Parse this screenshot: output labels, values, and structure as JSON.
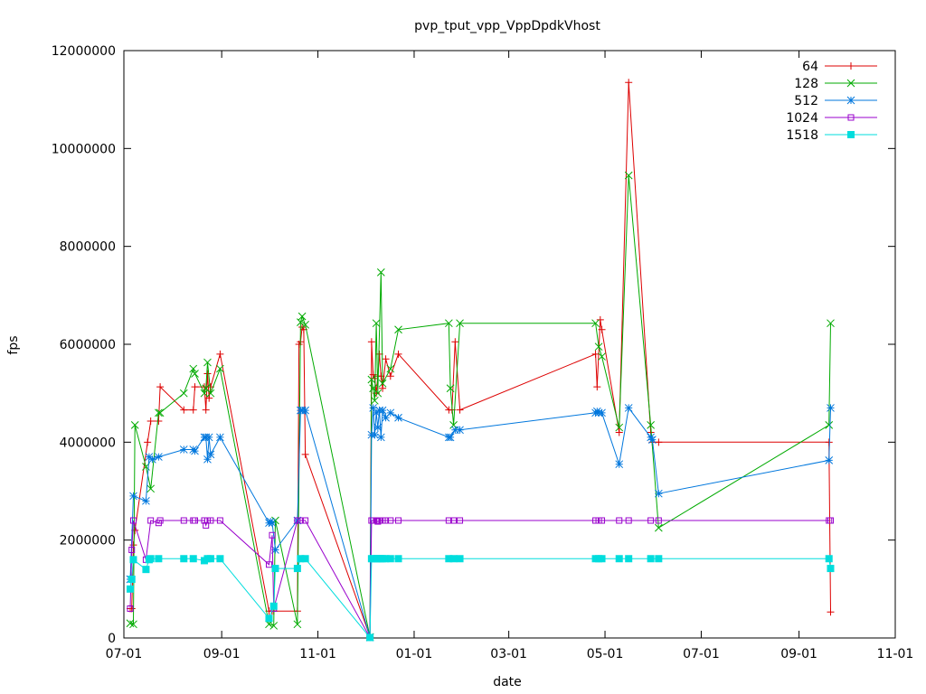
{
  "chart_data": {
    "type": "line",
    "title": "pvp_tput_vpp_VppDpdkVhost",
    "xlabel": "date",
    "ylabel": "fps",
    "x_domain": [
      "2015-07-01",
      "2016-11-01"
    ],
    "ylim": [
      0,
      12000000
    ],
    "xticks": [
      {
        "date": "2015-07-01",
        "label": "07-01"
      },
      {
        "date": "2015-09-01",
        "label": "09-01"
      },
      {
        "date": "2015-11-01",
        "label": "11-01"
      },
      {
        "date": "2016-01-01",
        "label": "01-01"
      },
      {
        "date": "2016-03-01",
        "label": "03-01"
      },
      {
        "date": "2016-05-01",
        "label": "05-01"
      },
      {
        "date": "2016-07-01",
        "label": "07-01"
      },
      {
        "date": "2016-09-01",
        "label": "09-01"
      },
      {
        "date": "2016-11-01",
        "label": "11-01"
      }
    ],
    "yticks": [
      {
        "value": 0,
        "label": "0"
      },
      {
        "value": 2000000,
        "label": "2000000"
      },
      {
        "value": 4000000,
        "label": "4000000"
      },
      {
        "value": 6000000,
        "label": "6000000"
      },
      {
        "value": 8000000,
        "label": "8000000"
      },
      {
        "value": 10000000,
        "label": "10000000"
      },
      {
        "value": 12000000,
        "label": "12000000"
      }
    ],
    "grid": false,
    "legend_position": "top-right",
    "series": [
      {
        "name": "64",
        "color": "#dd0000",
        "marker": "plus",
        "points": [
          [
            "2015-07-05",
            600000
          ],
          [
            "2015-07-06",
            600000
          ],
          [
            "2015-07-07",
            1900000
          ],
          [
            "2015-07-08",
            2200000
          ],
          [
            "2015-07-16",
            4000000
          ],
          [
            "2015-07-18",
            4430000
          ],
          [
            "2015-07-23",
            4430000
          ],
          [
            "2015-07-24",
            5130000
          ],
          [
            "2015-08-08",
            4660000
          ],
          [
            "2015-08-14",
            4660000
          ],
          [
            "2015-08-15",
            5130000
          ],
          [
            "2015-08-21",
            5130000
          ],
          [
            "2015-08-22",
            4660000
          ],
          [
            "2015-08-23",
            5400000
          ],
          [
            "2015-08-24",
            4900000
          ],
          [
            "2015-08-25",
            5130000
          ],
          [
            "2015-08-31",
            5800000
          ],
          [
            "2015-10-01",
            550000
          ],
          [
            "2015-10-03",
            550000
          ],
          [
            "2015-10-04",
            550000
          ],
          [
            "2015-10-19",
            550000
          ],
          [
            "2015-10-20",
            6000000
          ],
          [
            "2015-10-21",
            6050000
          ],
          [
            "2015-10-22",
            6350000
          ],
          [
            "2015-10-23",
            6300000
          ],
          [
            "2015-10-24",
            3750000
          ],
          [
            "2015-12-04",
            30000
          ],
          [
            "2015-12-05",
            6050000
          ],
          [
            "2015-12-06",
            5380000
          ],
          [
            "2015-12-07",
            5300000
          ],
          [
            "2015-12-08",
            5000000
          ],
          [
            "2015-12-09",
            5350000
          ],
          [
            "2015-12-10",
            5800000
          ],
          [
            "2015-12-11",
            5350000
          ],
          [
            "2015-12-12",
            5100000
          ],
          [
            "2015-12-14",
            5700000
          ],
          [
            "2015-12-17",
            5350000
          ],
          [
            "2015-12-22",
            5800000
          ],
          [
            "2016-01-23",
            4660000
          ],
          [
            "2016-01-25",
            4660000
          ],
          [
            "2016-01-27",
            6050000
          ],
          [
            "2016-01-30",
            4660000
          ],
          [
            "2016-04-25",
            5800000
          ],
          [
            "2016-04-26",
            5130000
          ],
          [
            "2016-04-28",
            6500000
          ],
          [
            "2016-04-29",
            6300000
          ],
          [
            "2016-05-10",
            4200000
          ],
          [
            "2016-05-16",
            11350000
          ],
          [
            "2016-05-30",
            4200000
          ],
          [
            "2016-05-31",
            4000000
          ],
          [
            "2016-06-04",
            4000000
          ],
          [
            "2016-09-20",
            4000000
          ],
          [
            "2016-09-21",
            530000
          ]
        ]
      },
      {
        "name": "128",
        "color": "#00aa00",
        "marker": "cross",
        "points": [
          [
            "2015-07-05",
            300000
          ],
          [
            "2015-07-07",
            280000
          ],
          [
            "2015-07-08",
            4350000
          ],
          [
            "2015-07-15",
            3500000
          ],
          [
            "2015-07-18",
            3050000
          ],
          [
            "2015-07-23",
            4600000
          ],
          [
            "2015-07-24",
            4600000
          ],
          [
            "2015-08-08",
            5000000
          ],
          [
            "2015-08-14",
            5500000
          ],
          [
            "2015-08-15",
            5400000
          ],
          [
            "2015-08-21",
            5000000
          ],
          [
            "2015-08-22",
            5100000
          ],
          [
            "2015-08-23",
            5630000
          ],
          [
            "2015-08-25",
            5000000
          ],
          [
            "2015-08-31",
            5500000
          ],
          [
            "2015-10-01",
            280000
          ],
          [
            "2015-10-04",
            250000
          ],
          [
            "2015-10-05",
            2400000
          ],
          [
            "2015-10-19",
            280000
          ],
          [
            "2015-10-21",
            6450000
          ],
          [
            "2015-10-22",
            6570000
          ],
          [
            "2015-10-24",
            6400000
          ],
          [
            "2015-12-04",
            20000
          ],
          [
            "2015-12-05",
            5280000
          ],
          [
            "2015-12-06",
            5100000
          ],
          [
            "2015-12-07",
            4850000
          ],
          [
            "2015-12-08",
            6430000
          ],
          [
            "2015-12-09",
            5000000
          ],
          [
            "2015-12-11",
            7470000
          ],
          [
            "2015-12-12",
            5200000
          ],
          [
            "2015-12-17",
            5500000
          ],
          [
            "2015-12-22",
            6300000
          ],
          [
            "2016-01-23",
            6430000
          ],
          [
            "2016-01-24",
            5100000
          ],
          [
            "2016-01-26",
            4350000
          ],
          [
            "2016-01-30",
            6430000
          ],
          [
            "2016-04-25",
            6430000
          ],
          [
            "2016-04-27",
            5950000
          ],
          [
            "2016-04-29",
            5750000
          ],
          [
            "2016-05-10",
            4300000
          ],
          [
            "2016-05-16",
            9450000
          ],
          [
            "2016-05-30",
            4350000
          ],
          [
            "2016-06-04",
            2250000
          ],
          [
            "2016-09-20",
            4350000
          ],
          [
            "2016-09-21",
            6430000
          ]
        ]
      },
      {
        "name": "512",
        "color": "#0077dd",
        "marker": "star",
        "points": [
          [
            "2015-07-05",
            1200000
          ],
          [
            "2015-07-07",
            2900000
          ],
          [
            "2015-07-15",
            2800000
          ],
          [
            "2015-07-17",
            3700000
          ],
          [
            "2015-07-19",
            3650000
          ],
          [
            "2015-07-23",
            3700000
          ],
          [
            "2015-08-08",
            3850000
          ],
          [
            "2015-08-14",
            3850000
          ],
          [
            "2015-08-15",
            3820000
          ],
          [
            "2015-08-21",
            4100000
          ],
          [
            "2015-08-22",
            4100000
          ],
          [
            "2015-08-23",
            3650000
          ],
          [
            "2015-08-24",
            4100000
          ],
          [
            "2015-08-25",
            3750000
          ],
          [
            "2015-08-31",
            4100000
          ],
          [
            "2015-10-01",
            2350000
          ],
          [
            "2015-10-02",
            2380000
          ],
          [
            "2015-10-03",
            2350000
          ],
          [
            "2015-10-05",
            1800000
          ],
          [
            "2015-10-19",
            2400000
          ],
          [
            "2015-10-21",
            4650000
          ],
          [
            "2015-10-22",
            4650000
          ],
          [
            "2015-10-24",
            4650000
          ],
          [
            "2015-12-04",
            10000
          ],
          [
            "2015-12-05",
            4150000
          ],
          [
            "2015-12-06",
            4700000
          ],
          [
            "2015-12-07",
            4150000
          ],
          [
            "2015-12-08",
            4600000
          ],
          [
            "2015-12-09",
            4300000
          ],
          [
            "2015-12-10",
            4650000
          ],
          [
            "2015-12-11",
            4100000
          ],
          [
            "2015-12-12",
            4650000
          ],
          [
            "2015-12-14",
            4500000
          ],
          [
            "2015-12-17",
            4600000
          ],
          [
            "2015-12-22",
            4500000
          ],
          [
            "2016-01-23",
            4100000
          ],
          [
            "2016-01-24",
            4100000
          ],
          [
            "2016-01-27",
            4250000
          ],
          [
            "2016-01-30",
            4250000
          ],
          [
            "2016-04-25",
            4600000
          ],
          [
            "2016-04-26",
            4630000
          ],
          [
            "2016-04-27",
            4600000
          ],
          [
            "2016-04-29",
            4600000
          ],
          [
            "2016-05-10",
            3550000
          ],
          [
            "2016-05-16",
            4700000
          ],
          [
            "2016-05-30",
            4100000
          ],
          [
            "2016-05-31",
            4050000
          ],
          [
            "2016-06-04",
            2950000
          ],
          [
            "2016-09-20",
            3630000
          ],
          [
            "2016-09-21",
            4700000
          ]
        ]
      },
      {
        "name": "1024",
        "color": "#9900cc",
        "marker": "open-square",
        "points": [
          [
            "2015-07-05",
            600000
          ],
          [
            "2015-07-06",
            1800000
          ],
          [
            "2015-07-07",
            2400000
          ],
          [
            "2015-07-15",
            1600000
          ],
          [
            "2015-07-18",
            2400000
          ],
          [
            "2015-07-23",
            2350000
          ],
          [
            "2015-07-24",
            2400000
          ],
          [
            "2015-08-08",
            2400000
          ],
          [
            "2015-08-14",
            2400000
          ],
          [
            "2015-08-15",
            2400000
          ],
          [
            "2015-08-21",
            2400000
          ],
          [
            "2015-08-22",
            2300000
          ],
          [
            "2015-08-23",
            2400000
          ],
          [
            "2015-08-25",
            2400000
          ],
          [
            "2015-08-31",
            2400000
          ],
          [
            "2015-10-01",
            1500000
          ],
          [
            "2015-10-03",
            2100000
          ],
          [
            "2015-10-04",
            600000
          ],
          [
            "2015-10-19",
            2400000
          ],
          [
            "2015-10-21",
            2400000
          ],
          [
            "2015-10-24",
            2400000
          ],
          [
            "2015-12-04",
            10000
          ],
          [
            "2015-12-05",
            2400000
          ],
          [
            "2015-12-06",
            2400000
          ],
          [
            "2015-12-08",
            2400000
          ],
          [
            "2015-12-09",
            2380000
          ],
          [
            "2015-12-10",
            2400000
          ],
          [
            "2015-12-12",
            2400000
          ],
          [
            "2015-12-14",
            2400000
          ],
          [
            "2015-12-17",
            2400000
          ],
          [
            "2015-12-22",
            2400000
          ],
          [
            "2016-01-23",
            2400000
          ],
          [
            "2016-01-26",
            2400000
          ],
          [
            "2016-01-30",
            2400000
          ],
          [
            "2016-04-25",
            2400000
          ],
          [
            "2016-04-27",
            2400000
          ],
          [
            "2016-04-29",
            2400000
          ],
          [
            "2016-05-10",
            2400000
          ],
          [
            "2016-05-16",
            2400000
          ],
          [
            "2016-05-30",
            2400000
          ],
          [
            "2016-06-04",
            2400000
          ],
          [
            "2016-09-20",
            2400000
          ],
          [
            "2016-09-21",
            2400000
          ]
        ]
      },
      {
        "name": "1518",
        "color": "#00dddd",
        "marker": "filled-square",
        "points": [
          [
            "2015-07-05",
            1000000
          ],
          [
            "2015-07-06",
            1200000
          ],
          [
            "2015-07-07",
            1600000
          ],
          [
            "2015-07-15",
            1400000
          ],
          [
            "2015-07-17",
            1600000
          ],
          [
            "2015-07-18",
            1620000
          ],
          [
            "2015-07-23",
            1620000
          ],
          [
            "2015-08-08",
            1620000
          ],
          [
            "2015-08-14",
            1620000
          ],
          [
            "2015-08-21",
            1580000
          ],
          [
            "2015-08-23",
            1620000
          ],
          [
            "2015-08-25",
            1620000
          ],
          [
            "2015-08-31",
            1620000
          ],
          [
            "2015-10-01",
            400000
          ],
          [
            "2015-10-04",
            650000
          ],
          [
            "2015-10-05",
            1420000
          ],
          [
            "2015-10-19",
            1420000
          ],
          [
            "2015-10-21",
            1620000
          ],
          [
            "2015-10-24",
            1620000
          ],
          [
            "2015-12-04",
            10000
          ],
          [
            "2015-12-05",
            1620000
          ],
          [
            "2015-12-06",
            1620000
          ],
          [
            "2015-12-08",
            1620000
          ],
          [
            "2015-12-09",
            1620000
          ],
          [
            "2015-12-10",
            1620000
          ],
          [
            "2015-12-11",
            1620000
          ],
          [
            "2015-12-12",
            1620000
          ],
          [
            "2015-12-14",
            1620000
          ],
          [
            "2015-12-17",
            1620000
          ],
          [
            "2015-12-22",
            1620000
          ],
          [
            "2016-01-23",
            1620000
          ],
          [
            "2016-01-26",
            1620000
          ],
          [
            "2016-01-30",
            1620000
          ],
          [
            "2016-04-25",
            1620000
          ],
          [
            "2016-04-27",
            1620000
          ],
          [
            "2016-04-29",
            1620000
          ],
          [
            "2016-05-10",
            1620000
          ],
          [
            "2016-05-16",
            1620000
          ],
          [
            "2016-05-30",
            1620000
          ],
          [
            "2016-06-04",
            1620000
          ],
          [
            "2016-09-20",
            1620000
          ],
          [
            "2016-09-21",
            1420000
          ]
        ]
      }
    ]
  }
}
